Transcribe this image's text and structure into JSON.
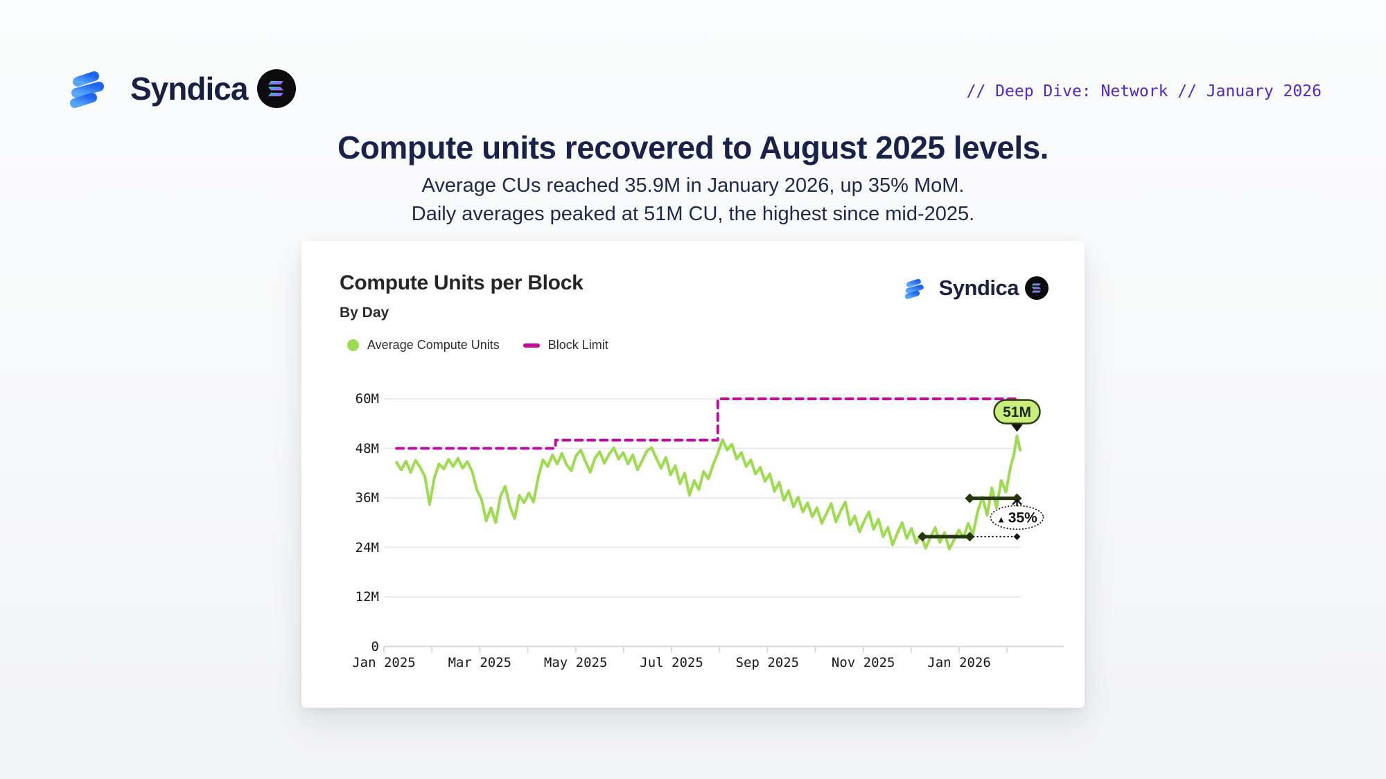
{
  "header": {
    "brand": "Syndica",
    "kicker": "// Deep Dive: Network // January 2026",
    "kicker_color": "#4f27cd"
  },
  "hero": {
    "title": "Compute units recovered to August 2025 levels.",
    "subtitle_line1": "Average CUs reached 35.9M in January 2026, up 35% MoM.",
    "subtitle_line2": "Daily averages peaked at 51M CU, the highest since mid-2025."
  },
  "card": {
    "title": "Compute Units per Block",
    "subtitle": "By Day",
    "brand": "Syndica",
    "legend": [
      {
        "label": "Average Compute Units",
        "color": "#9edc4f",
        "swatch": "dot"
      },
      {
        "label": "Block Limit",
        "color": "#bc109c",
        "swatch": "dash"
      }
    ]
  },
  "chart_data": {
    "type": "line",
    "title": "Compute Units per Block",
    "subtitle": "By Day",
    "unit": "M compute units",
    "x_axis": {
      "description": "days since 2025-01-01",
      "tick_labels": [
        "Jan 2025",
        "Mar 2025",
        "May 2025",
        "Jul 2025",
        "Sep 2025",
        "Nov 2025",
        "Jan 2026"
      ],
      "tick_month_offsets": [
        0,
        2,
        4,
        6,
        8,
        10,
        12
      ],
      "minor_tick_months": [
        0,
        1,
        2,
        3,
        4,
        5,
        6,
        7,
        8,
        9,
        10,
        11,
        12,
        13
      ]
    },
    "y_axis": {
      "tick_labels": [
        "0",
        "12M",
        "24M",
        "36M",
        "48M",
        "60M"
      ],
      "tick_values": [
        0,
        12,
        24,
        36,
        48,
        60
      ],
      "ylim": [
        0,
        60
      ],
      "grid": true
    },
    "series": [
      {
        "name": "Average Compute Units",
        "color": "#9edc4f",
        "style": "solid",
        "points": [
          [
            8,
            44.6
          ],
          [
            11,
            42.8
          ],
          [
            14,
            44.9
          ],
          [
            17,
            42.2
          ],
          [
            20,
            45.1
          ],
          [
            23,
            43.4
          ],
          [
            26,
            41.2
          ],
          [
            29,
            34.4
          ],
          [
            32,
            40.8
          ],
          [
            35,
            44.2
          ],
          [
            38,
            43.0
          ],
          [
            41,
            45.3
          ],
          [
            44,
            43.6
          ],
          [
            47,
            45.6
          ],
          [
            50,
            43.2
          ],
          [
            53,
            44.8
          ],
          [
            56,
            42.4
          ],
          [
            59,
            38.0
          ],
          [
            62,
            35.6
          ],
          [
            65,
            30.4
          ],
          [
            68,
            33.6
          ],
          [
            71,
            30.0
          ],
          [
            74,
            36.4
          ],
          [
            77,
            38.8
          ],
          [
            80,
            34.0
          ],
          [
            83,
            31.0
          ],
          [
            86,
            36.6
          ],
          [
            89,
            34.8
          ],
          [
            92,
            37.2
          ],
          [
            95,
            35.0
          ],
          [
            98,
            41.0
          ],
          [
            101,
            45.2
          ],
          [
            104,
            43.6
          ],
          [
            107,
            46.4
          ],
          [
            110,
            44.2
          ],
          [
            113,
            46.8
          ],
          [
            116,
            44.0
          ],
          [
            119,
            42.6
          ],
          [
            122,
            46.2
          ],
          [
            125,
            47.6
          ],
          [
            128,
            44.8
          ],
          [
            131,
            42.2
          ],
          [
            134,
            45.6
          ],
          [
            137,
            47.2
          ],
          [
            140,
            44.4
          ],
          [
            143,
            46.6
          ],
          [
            146,
            48.1
          ],
          [
            149,
            45.4
          ],
          [
            152,
            47.0
          ],
          [
            155,
            44.2
          ],
          [
            158,
            46.4
          ],
          [
            161,
            42.8
          ],
          [
            164,
            45.0
          ],
          [
            167,
            47.4
          ],
          [
            170,
            48.2
          ],
          [
            173,
            45.6
          ],
          [
            176,
            43.2
          ],
          [
            179,
            45.8
          ],
          [
            182,
            41.6
          ],
          [
            185,
            43.8
          ],
          [
            188,
            39.4
          ],
          [
            191,
            42.0
          ],
          [
            194,
            36.6
          ],
          [
            197,
            40.2
          ],
          [
            200,
            38.0
          ],
          [
            203,
            42.4
          ],
          [
            206,
            40.6
          ],
          [
            209,
            44.0
          ],
          [
            212,
            46.8
          ],
          [
            215,
            50.1
          ],
          [
            218,
            47.6
          ],
          [
            221,
            49.0
          ],
          [
            224,
            45.4
          ],
          [
            227,
            47.0
          ],
          [
            230,
            43.6
          ],
          [
            233,
            45.2
          ],
          [
            236,
            41.8
          ],
          [
            239,
            43.4
          ],
          [
            242,
            40.0
          ],
          [
            245,
            41.8
          ],
          [
            248,
            37.6
          ],
          [
            251,
            39.8
          ],
          [
            254,
            35.4
          ],
          [
            257,
            37.8
          ],
          [
            260,
            33.8
          ],
          [
            263,
            36.2
          ],
          [
            266,
            32.6
          ],
          [
            269,
            34.8
          ],
          [
            272,
            31.4
          ],
          [
            275,
            33.6
          ],
          [
            278,
            29.8
          ],
          [
            281,
            32.2
          ],
          [
            284,
            34.6
          ],
          [
            287,
            30.2
          ],
          [
            290,
            32.8
          ],
          [
            293,
            35.0
          ],
          [
            296,
            29.4
          ],
          [
            299,
            31.6
          ],
          [
            302,
            27.8
          ],
          [
            305,
            30.4
          ],
          [
            308,
            32.6
          ],
          [
            311,
            28.4
          ],
          [
            314,
            30.8
          ],
          [
            317,
            26.6
          ],
          [
            320,
            28.8
          ],
          [
            323,
            24.6
          ],
          [
            326,
            27.4
          ],
          [
            329,
            30.0
          ],
          [
            332,
            26.2
          ],
          [
            335,
            28.6
          ],
          [
            338,
            25.0
          ],
          [
            341,
            27.2
          ],
          [
            344,
            23.8
          ],
          [
            347,
            26.4
          ],
          [
            350,
            28.8
          ],
          [
            353,
            25.2
          ],
          [
            356,
            27.6
          ],
          [
            359,
            23.6
          ],
          [
            362,
            25.8
          ],
          [
            365,
            28.2
          ],
          [
            368,
            26.4
          ],
          [
            371,
            29.8
          ],
          [
            374,
            27.2
          ],
          [
            377,
            32.6
          ],
          [
            380,
            36.2
          ],
          [
            383,
            31.8
          ],
          [
            386,
            38.4
          ],
          [
            389,
            33.6
          ],
          [
            392,
            40.2
          ],
          [
            395,
            37.4
          ],
          [
            398,
            43.8
          ],
          [
            400,
            46.4
          ],
          [
            402,
            51.0
          ],
          [
            404,
            47.6
          ]
        ]
      },
      {
        "name": "Block Limit",
        "color": "#bc109c",
        "style": "dashed",
        "points": [
          [
            8,
            48
          ],
          [
            109,
            48
          ],
          [
            109,
            50
          ],
          [
            212,
            50
          ],
          [
            212,
            60
          ],
          [
            404,
            60
          ]
        ]
      }
    ],
    "annotations": {
      "peak_badge": {
        "label": "51M",
        "day": 402,
        "value": 51
      },
      "mom_comparison": {
        "from": {
          "value": 26.6,
          "day_start": 342,
          "day_end": 372
        },
        "to": {
          "value": 35.9,
          "day_start": 372,
          "day_end": 402
        },
        "percent_label": "35%",
        "direction": "up"
      }
    }
  }
}
